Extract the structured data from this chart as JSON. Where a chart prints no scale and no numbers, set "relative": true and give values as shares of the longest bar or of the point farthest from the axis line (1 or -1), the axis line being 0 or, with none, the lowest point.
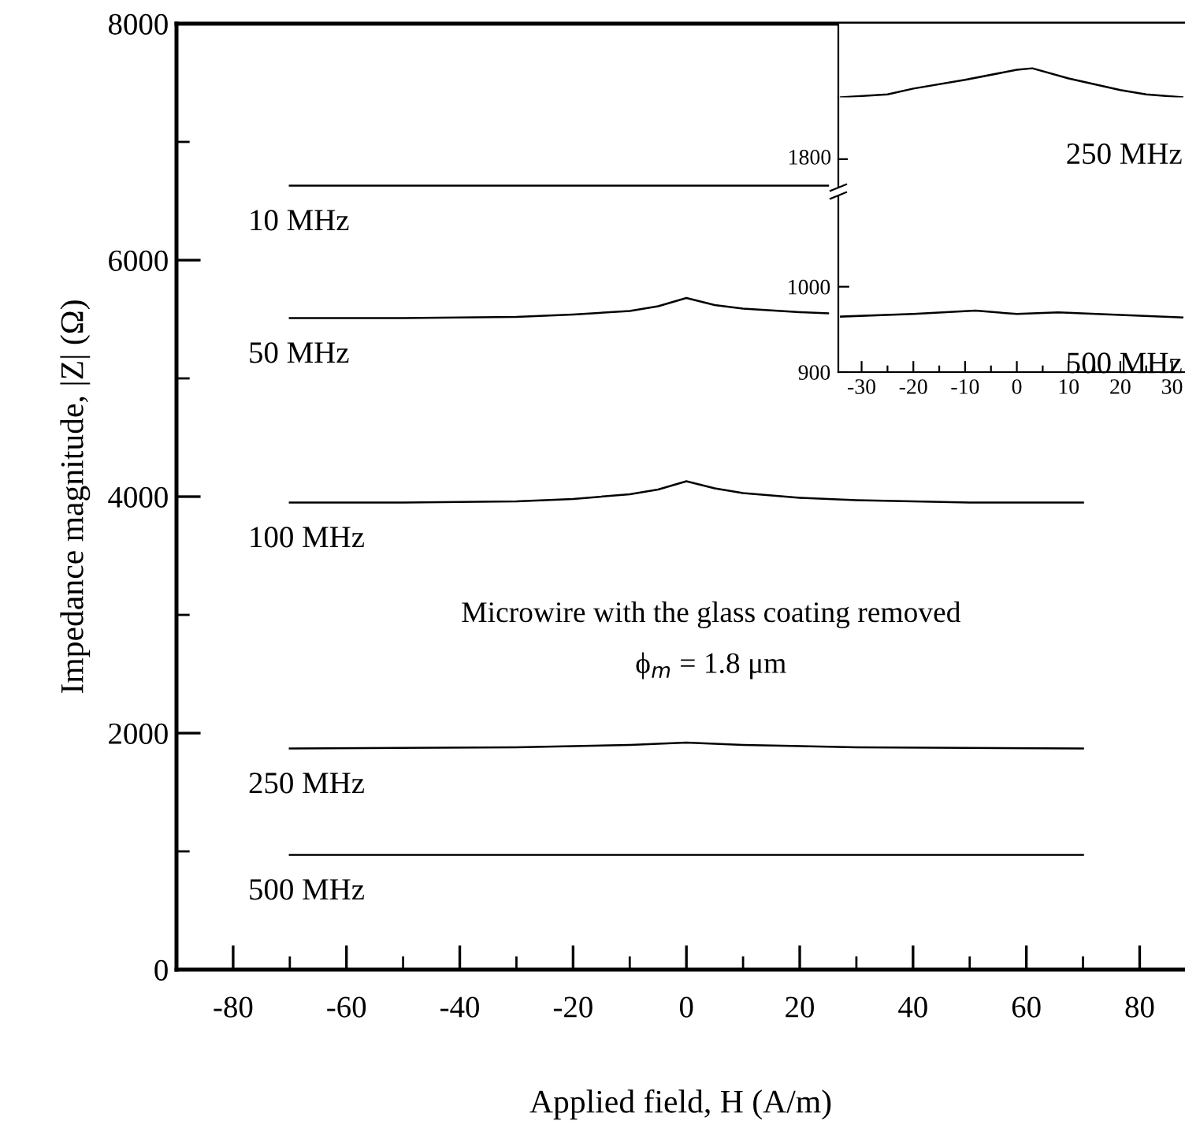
{
  "chart_data": [
    {
      "type": "line",
      "xlabel": "Applied field, H (A/m)",
      "ylabel": "Impedance magnitude, |Z| (Ω)",
      "xlim": [
        -90,
        88
      ],
      "ylim": [
        0,
        8000
      ],
      "xticks": [
        -80,
        -60,
        -40,
        -20,
        0,
        20,
        40,
        60,
        80,
        {
          "value": -70,
          "label": null
        },
        {
          "value": -50,
          "label": null
        },
        {
          "value": -30,
          "label": null
        },
        {
          "value": -10,
          "label": null
        },
        {
          "value": 10,
          "label": null
        },
        {
          "value": 30,
          "label": null
        },
        {
          "value": 50,
          "label": null
        },
        {
          "value": 70,
          "label": null
        }
      ],
      "yticks": [
        0,
        2000,
        4000,
        6000,
        8000,
        {
          "value": 1000,
          "label": null
        },
        {
          "value": 3000,
          "label": null
        },
        {
          "value": 5000,
          "label": null
        },
        {
          "value": 7000,
          "label": null
        }
      ],
      "grid": false,
      "legend": false,
      "marker": "none",
      "line_style": "solid",
      "annotations": [
        "Microwire with the glass coating removed",
        "ϕ$_{m}$ = 1.8 μm"
      ],
      "series": [
        {
          "name": "10 MHz",
          "color": "#000000",
          "x": [
            -70,
            -30,
            0,
            25
          ],
          "values": [
            6630,
            6630,
            6630,
            6630
          ]
        },
        {
          "name": "50 MHz",
          "color": "#000000",
          "x": [
            -70,
            -50,
            -30,
            -20,
            -10,
            -5,
            0,
            5,
            10,
            20,
            25
          ],
          "values": [
            5510,
            5510,
            5520,
            5540,
            5570,
            5610,
            5680,
            5620,
            5590,
            5560,
            5550
          ]
        },
        {
          "name": "100 MHz",
          "color": "#000000",
          "x": [
            -70,
            -50,
            -30,
            -20,
            -10,
            -5,
            0,
            5,
            10,
            20,
            30,
            50,
            70
          ],
          "values": [
            3950,
            3950,
            3960,
            3980,
            4020,
            4060,
            4130,
            4070,
            4030,
            3990,
            3970,
            3950,
            3950
          ]
        },
        {
          "name": "250 MHz",
          "color": "#000000",
          "x": [
            -70,
            -30,
            -10,
            0,
            10,
            30,
            70
          ],
          "values": [
            1870,
            1880,
            1900,
            1920,
            1900,
            1880,
            1870
          ]
        },
        {
          "name": "500 MHz",
          "color": "#000000",
          "x": [
            -70,
            0,
            70
          ],
          "values": [
            970,
            970,
            970
          ]
        }
      ]
    },
    {
      "type": "line",
      "relative": true,
      "xlim": [
        -34.5,
        32.5
      ],
      "marker": "none",
      "line_style": "solid",
      "annotations": [
        "1800"
      ],
      "series": [
        {
          "name": "250 MHz",
          "color": "#000000",
          "x": [
            -34,
            -25,
            -20,
            -10,
            0,
            3,
            10,
            20,
            25,
            32
          ],
          "values": [
            0,
            0.1,
            0.3,
            0.6,
            0.95,
            1,
            0.65,
            0.25,
            0.1,
            0
          ]
        }
      ]
    },
    {
      "type": "line",
      "xlim": [
        -34.5,
        32.5
      ],
      "ylim": [
        900,
        1105
      ],
      "xticks": [
        -30,
        -20,
        -10,
        0,
        10,
        20,
        30,
        {
          "value": -25,
          "label": null
        },
        {
          "value": -15,
          "label": null
        },
        {
          "value": -5,
          "label": null
        },
        {
          "value": 5,
          "label": null
        },
        {
          "value": 15,
          "label": null
        },
        {
          "value": 25,
          "label": null
        }
      ],
      "yticks": [
        900,
        1000
      ],
      "marker": "none",
      "line_style": "solid",
      "series": [
        {
          "name": "500 MHz",
          "color": "#000000",
          "x": [
            -34,
            -20,
            -8,
            0,
            8,
            20,
            32
          ],
          "values": [
            965,
            968,
            972,
            968,
            970,
            967,
            964
          ]
        }
      ]
    }
  ]
}
